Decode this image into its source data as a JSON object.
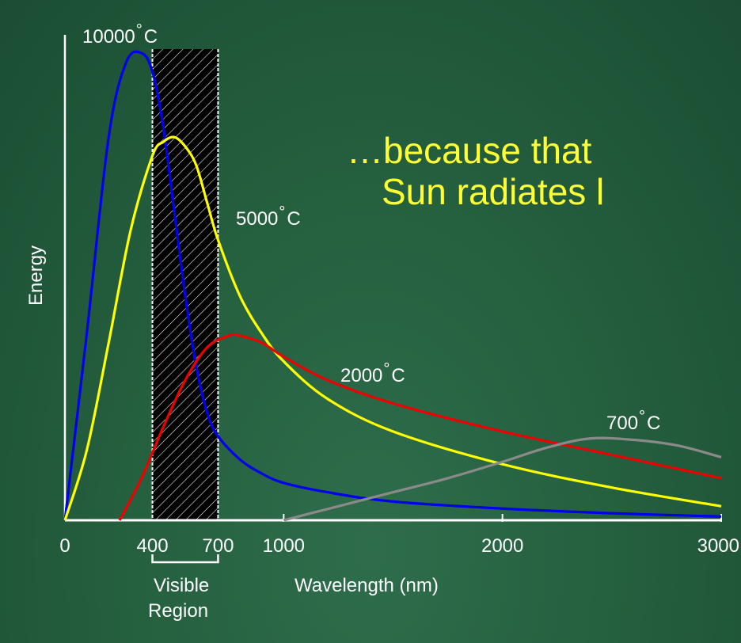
{
  "headline": {
    "line1": "…because that",
    "line2": "Sun radiates l"
  },
  "colors": {
    "background": "#25603f",
    "headline": "#ffff33",
    "axes": "#ffffff"
  },
  "chart_data": {
    "type": "line",
    "xlabel": "Wavelength (nm)",
    "ylabel": "Energy",
    "xlim": [
      0,
      3000
    ],
    "x_ticks": [
      "0",
      "400",
      "700",
      "1000",
      "2000",
      "3000"
    ],
    "y_ticks": [],
    "grid": false,
    "legend": "none",
    "highlight_band": {
      "x_range": [
        400,
        700
      ],
      "label_line1": "Visible",
      "label_line2": "Region",
      "fill": "hatched black"
    },
    "series": [
      {
        "name": "10000°C",
        "color": "#0000ee",
        "x": [
          0,
          100,
          200,
          280,
          350,
          400,
          450,
          500,
          550,
          600,
          650,
          700,
          800,
          900,
          1000,
          1200,
          1500,
          2000,
          2500,
          3000
        ],
        "y": [
          0,
          40,
          82,
          98,
          100,
          96,
          84,
          66,
          48,
          33,
          23,
          18,
          13,
          10,
          8,
          6,
          4,
          2.5,
          1.5,
          0.8
        ]
      },
      {
        "name": "5000°C",
        "color": "#ffff00",
        "x": [
          0,
          100,
          200,
          300,
          400,
          450,
          500,
          550,
          600,
          650,
          700,
          800,
          900,
          1000,
          1200,
          1500,
          2000,
          2500,
          3000
        ],
        "y": [
          0,
          15,
          38,
          62,
          78,
          81,
          82,
          80,
          76,
          68,
          60,
          48,
          40,
          34,
          26,
          19,
          12,
          7,
          3
        ]
      },
      {
        "name": "2000°C",
        "color": "#ee0000",
        "x": [
          250,
          350,
          450,
          550,
          650,
          750,
          800,
          900,
          1000,
          1200,
          1500,
          2000,
          2500,
          3000
        ],
        "y": [
          0,
          9,
          20,
          30,
          37,
          39.5,
          39.5,
          38,
          35,
          30,
          25,
          19,
          14,
          9
        ]
      },
      {
        "name": "700°C",
        "color": "#8a8a8a",
        "x": [
          1000,
          1250,
          1500,
          1750,
          2000,
          2200,
          2400,
          2600,
          2800,
          3000
        ],
        "y": [
          0,
          3,
          6,
          9,
          12.5,
          15.5,
          17.5,
          17.2,
          16,
          13.5
        ]
      }
    ]
  }
}
